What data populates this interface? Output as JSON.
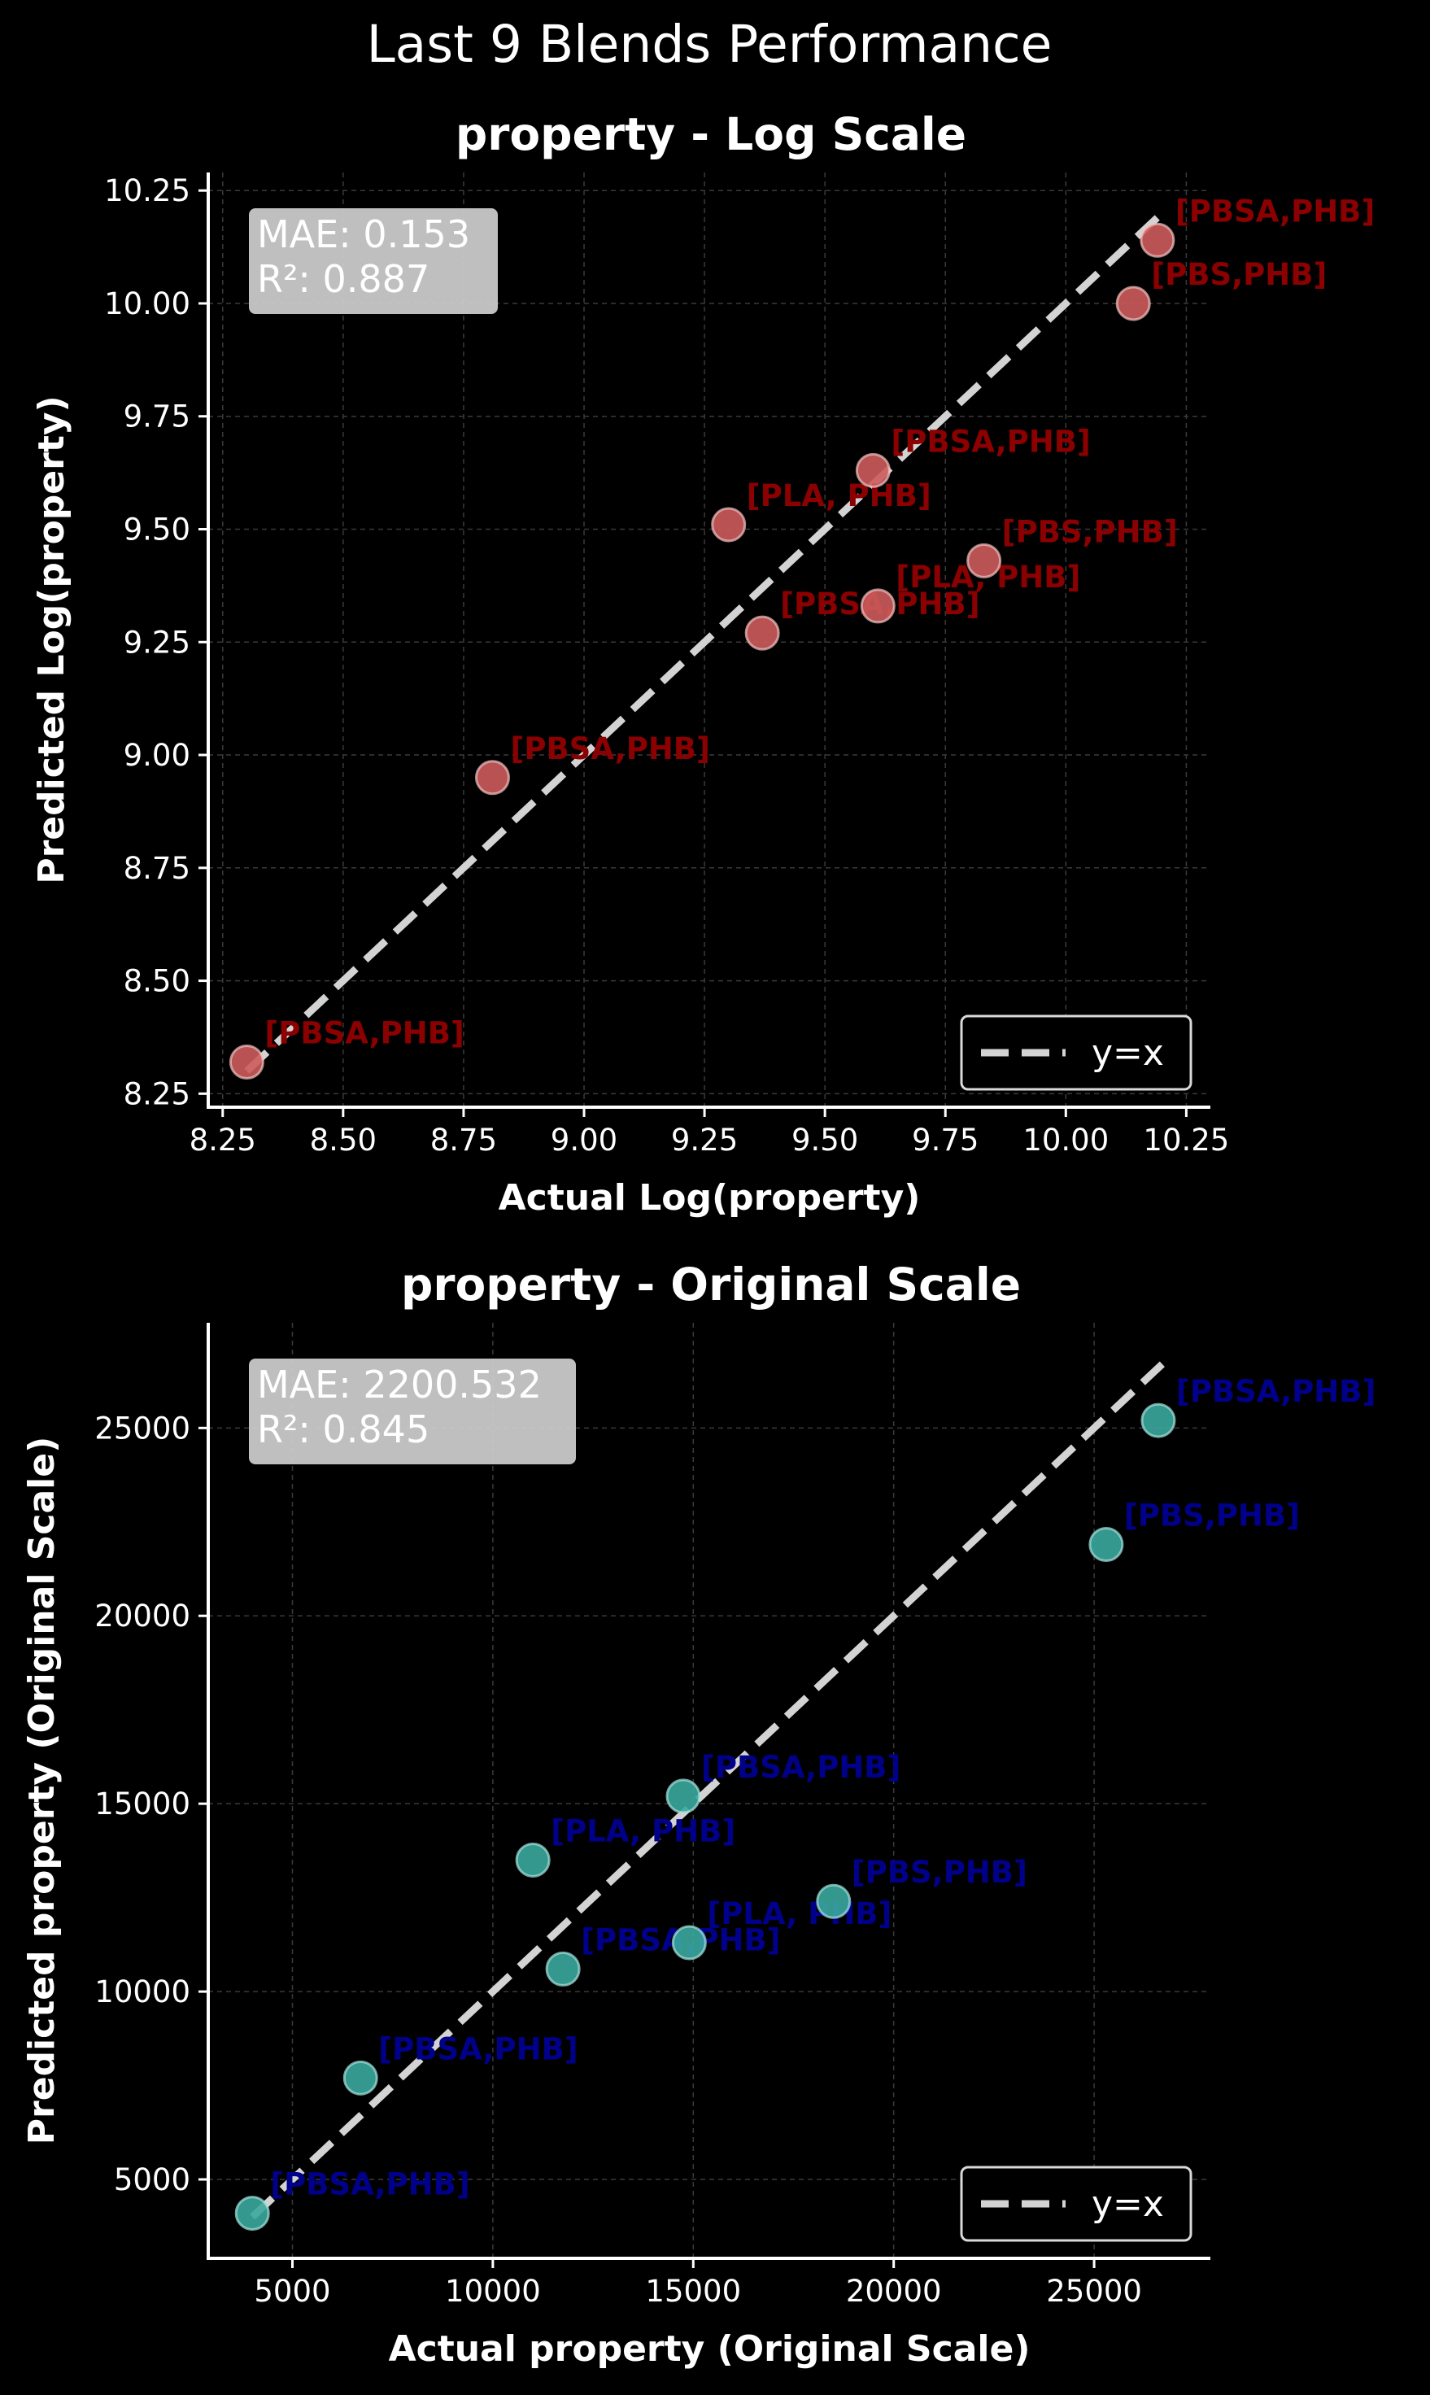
{
  "title": "Last 9 Blends Performance",
  "colors": {
    "background": "#000000",
    "axis": "#ffffff",
    "grid": "#3a3a3a",
    "ref_line": "#d3d3d3",
    "log_marker": "#cd5c5c",
    "log_label": "#8b0000",
    "orig_marker": "#3aa89e",
    "orig_label": "#00008b",
    "metrics_box": "#cfcfcf"
  },
  "chart_data": [
    {
      "type": "scatter",
      "title": "property - Log Scale",
      "xlabel": "Actual Log(property)",
      "ylabel": "Predicted Log(property)",
      "xlim": [
        8.22,
        10.3
      ],
      "ylim": [
        8.22,
        10.29
      ],
      "xticks": [
        8.25,
        8.5,
        8.75,
        9.0,
        9.25,
        9.5,
        9.75,
        10.0,
        10.25
      ],
      "yticks": [
        8.25,
        8.5,
        8.75,
        9.0,
        9.25,
        9.5,
        9.75,
        10.0,
        10.25
      ],
      "tick_format": "2",
      "grid": true,
      "legend": "lower-right",
      "legend_label": "y=x",
      "metrics": [
        "MAE: 0.153",
        "R²: 0.887"
      ],
      "ref_line": [
        8.3,
        10.19
      ],
      "points": [
        {
          "x": 8.3,
          "y": 8.32,
          "label": "[PBSA,PHB]"
        },
        {
          "x": 8.81,
          "y": 8.95,
          "label": "[PBSA,PHB]"
        },
        {
          "x": 9.37,
          "y": 9.27,
          "label": "[PBSA,PHB]"
        },
        {
          "x": 9.61,
          "y": 9.33,
          "label": "[PLA, PHB]"
        },
        {
          "x": 9.3,
          "y": 9.51,
          "label": "[PLA, PHB]"
        },
        {
          "x": 9.6,
          "y": 9.63,
          "label": "[PBSA,PHB]"
        },
        {
          "x": 9.83,
          "y": 9.43,
          "label": "[PBS,PHB]"
        },
        {
          "x": 10.14,
          "y": 10.0,
          "label": "[PBS,PHB]"
        },
        {
          "x": 10.19,
          "y": 10.14,
          "label": "[PBSA,PHB]"
        }
      ]
    },
    {
      "type": "scatter",
      "title": "property - Original Scale",
      "xlabel": "Actual property (Original Scale)",
      "ylabel": "Predicted property (Original Scale)",
      "xlim": [
        2900,
        27900
      ],
      "ylim": [
        2900,
        27800
      ],
      "xticks": [
        5000,
        10000,
        15000,
        20000,
        25000
      ],
      "yticks": [
        5000,
        10000,
        15000,
        20000,
        25000
      ],
      "tick_format": "0",
      "grid": true,
      "legend": "lower-right",
      "legend_label": "y=x",
      "metrics": [
        "MAE: 2200.532",
        "R²: 0.845"
      ],
      "ref_line": [
        4000,
        26700
      ],
      "points": [
        {
          "x": 4000,
          "y": 4100,
          "label": "[PBSA,PHB]"
        },
        {
          "x": 6700,
          "y": 7700,
          "label": "[PBSA,PHB]"
        },
        {
          "x": 11750,
          "y": 10600,
          "label": "[PBSA,PHB]"
        },
        {
          "x": 14900,
          "y": 11300,
          "label": "[PLA, PHB]"
        },
        {
          "x": 11000,
          "y": 13500,
          "label": "[PLA, PHB]"
        },
        {
          "x": 14750,
          "y": 15200,
          "label": "[PBSA,PHB]"
        },
        {
          "x": 18500,
          "y": 12400,
          "label": "[PBS,PHB]"
        },
        {
          "x": 25300,
          "y": 21900,
          "label": "[PBS,PHB]"
        },
        {
          "x": 26600,
          "y": 25200,
          "label": "[PBSA,PHB]"
        }
      ]
    }
  ]
}
